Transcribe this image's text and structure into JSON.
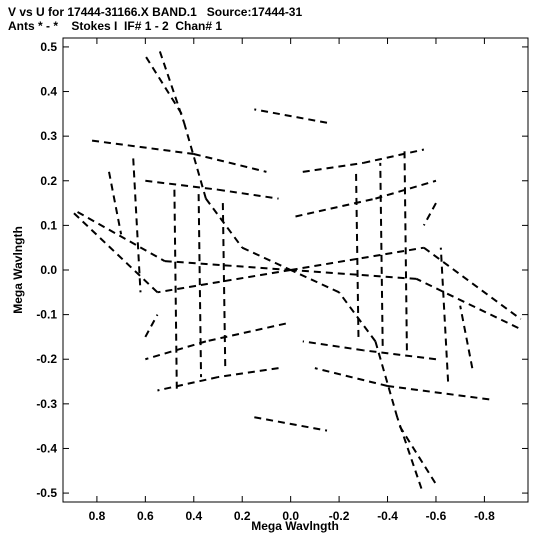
{
  "header": {
    "title_line1": "V vs U for 17444-31166.X BAND.1   Source:17444-31",
    "title_line2": "Ants * - *    Stokes I  IF# 1 - 2  Chan# 1"
  },
  "chart_data": {
    "type": "scatter",
    "xlabel": "Mega Wavlngth",
    "ylabel": "Mega Wavlngth",
    "x_reversed": true,
    "xlim": [
      0.94,
      -0.98
    ],
    "ylim": [
      -0.52,
      0.52
    ],
    "xticks": [
      0.8,
      0.6,
      0.4,
      0.2,
      0.0,
      -0.2,
      -0.4,
      -0.6,
      -0.8
    ],
    "xtick_labels": [
      "0.8",
      "0.6",
      "0.4",
      "0.2",
      "0.0",
      "-0.2",
      "-0.4",
      "-0.6",
      "-0.8"
    ],
    "yticks": [
      0.5,
      0.4,
      0.3,
      0.2,
      0.1,
      0.0,
      -0.1,
      -0.2,
      -0.3,
      -0.4,
      -0.5
    ],
    "ytick_labels": [
      "0.5",
      "0.4",
      "0.3",
      "0.2",
      "0.1",
      "0.0",
      "-0.1",
      "-0.2",
      "-0.3",
      "-0.4",
      "-0.5"
    ],
    "grid": false,
    "marker_color": "#000000",
    "tracks": [
      {
        "u0": 0.54,
        "v0": 0.49,
        "u1": 0.44,
        "v1": 0.33
      },
      {
        "u0": 0.44,
        "v0": 0.33,
        "u1": 0.35,
        "v1": 0.16
      },
      {
        "u0": 0.35,
        "v0": 0.16,
        "u1": 0.2,
        "v1": 0.05
      },
      {
        "u0": 0.2,
        "v0": 0.05,
        "u1": 0.0,
        "v1": 0.0
      },
      {
        "u0": -0.54,
        "v0": -0.49,
        "u1": -0.44,
        "v1": -0.33
      },
      {
        "u0": -0.44,
        "v0": -0.33,
        "u1": -0.35,
        "v1": -0.16
      },
      {
        "u0": -0.35,
        "v0": -0.16,
        "u1": -0.2,
        "v1": -0.05
      },
      {
        "u0": -0.2,
        "v0": -0.05,
        "u1": 0.0,
        "v1": 0.0
      },
      {
        "u0": 0.88,
        "v0": 0.13,
        "u1": 0.52,
        "v1": 0.02
      },
      {
        "u0": 0.52,
        "v0": 0.02,
        "u1": 0.0,
        "v1": 0.0
      },
      {
        "u0": -0.94,
        "v0": -0.13,
        "u1": -0.52,
        "v1": -0.02
      },
      {
        "u0": -0.52,
        "v0": -0.02,
        "u1": 0.0,
        "v1": 0.0
      },
      {
        "u0": 0.82,
        "v0": 0.29,
        "u1": 0.4,
        "v1": 0.26
      },
      {
        "u0": 0.4,
        "v0": 0.26,
        "u1": 0.1,
        "v1": 0.22
      },
      {
        "u0": -0.82,
        "v0": -0.29,
        "u1": -0.4,
        "v1": -0.26
      },
      {
        "u0": -0.4,
        "v0": -0.26,
        "u1": -0.1,
        "v1": -0.22
      },
      {
        "u0": 0.6,
        "v0": 0.2,
        "u1": 0.3,
        "v1": 0.18
      },
      {
        "u0": 0.3,
        "v0": 0.18,
        "u1": 0.05,
        "v1": 0.16
      },
      {
        "u0": -0.6,
        "v0": -0.2,
        "u1": -0.3,
        "v1": -0.18
      },
      {
        "u0": -0.3,
        "v0": -0.18,
        "u1": -0.05,
        "v1": -0.16
      },
      {
        "u0": -0.05,
        "v0": 0.22,
        "u1": -0.3,
        "v1": 0.24
      },
      {
        "u0": -0.3,
        "v0": 0.24,
        "u1": -0.55,
        "v1": 0.27
      },
      {
        "u0": 0.05,
        "v0": -0.22,
        "u1": 0.3,
        "v1": -0.24
      },
      {
        "u0": 0.3,
        "v0": -0.24,
        "u1": 0.55,
        "v1": -0.27
      },
      {
        "u0": -0.02,
        "v0": 0.12,
        "u1": -0.35,
        "v1": 0.16
      },
      {
        "u0": -0.35,
        "v0": 0.16,
        "u1": -0.6,
        "v1": 0.2
      },
      {
        "u0": 0.02,
        "v0": -0.12,
        "u1": 0.35,
        "v1": -0.16
      },
      {
        "u0": 0.35,
        "v0": -0.16,
        "u1": 0.6,
        "v1": -0.2
      },
      {
        "u0": 0.0,
        "v0": 0.0,
        "u1": -0.55,
        "v1": 0.05
      },
      {
        "u0": -0.55,
        "v0": 0.05,
        "u1": -0.95,
        "v1": -0.11
      },
      {
        "u0": 0.0,
        "v0": 0.0,
        "u1": 0.55,
        "v1": -0.05
      },
      {
        "u0": 0.55,
        "v0": -0.05,
        "u1": 0.9,
        "v1": 0.13
      },
      {
        "u0": 0.48,
        "v0": 0.18,
        "u1": 0.47,
        "v1": -0.27
      },
      {
        "u0": 0.38,
        "v0": 0.17,
        "u1": 0.37,
        "v1": -0.24
      },
      {
        "u0": 0.28,
        "v0": 0.15,
        "u1": 0.27,
        "v1": -0.22
      },
      {
        "u0": -0.48,
        "v0": -0.18,
        "u1": -0.47,
        "v1": 0.27
      },
      {
        "u0": -0.38,
        "v0": -0.17,
        "u1": -0.37,
        "v1": 0.24
      },
      {
        "u0": -0.28,
        "v0": -0.15,
        "u1": -0.27,
        "v1": 0.22
      },
      {
        "u0": 0.65,
        "v0": 0.25,
        "u1": 0.62,
        "v1": -0.05
      },
      {
        "u0": -0.65,
        "v0": -0.25,
        "u1": -0.62,
        "v1": 0.05
      },
      {
        "u0": 0.75,
        "v0": 0.22,
        "u1": 0.7,
        "v1": 0.08
      },
      {
        "u0": -0.75,
        "v0": -0.22,
        "u1": -0.7,
        "v1": -0.08
      },
      {
        "u0": 0.6,
        "v0": -0.15,
        "u1": 0.55,
        "v1": -0.1
      },
      {
        "u0": -0.6,
        "v0": 0.15,
        "u1": -0.55,
        "v1": 0.1
      },
      {
        "u0": 0.15,
        "v0": -0.33,
        "u1": -0.15,
        "v1": -0.36
      },
      {
        "u0": -0.15,
        "v0": 0.33,
        "u1": 0.15,
        "v1": 0.36
      },
      {
        "u0": -0.45,
        "v0": -0.35,
        "u1": -0.6,
        "v1": -0.48
      },
      {
        "u0": 0.45,
        "v0": 0.35,
        "u1": 0.6,
        "v1": 0.48
      }
    ]
  }
}
